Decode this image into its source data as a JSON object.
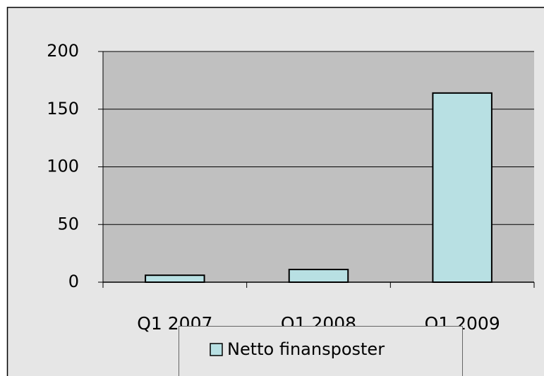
{
  "chart_data": {
    "type": "bar",
    "categories": [
      "Q1 2007",
      "Q1 2008",
      "Q1 2009"
    ],
    "series": [
      {
        "name": "Netto finansposter",
        "color": "#b8e0e3",
        "values": [
          6,
          11,
          164
        ]
      }
    ],
    "ylim": [
      0,
      200
    ],
    "yticks": [
      0,
      50,
      100,
      150,
      200
    ],
    "grid": true,
    "legend": "bottom"
  }
}
